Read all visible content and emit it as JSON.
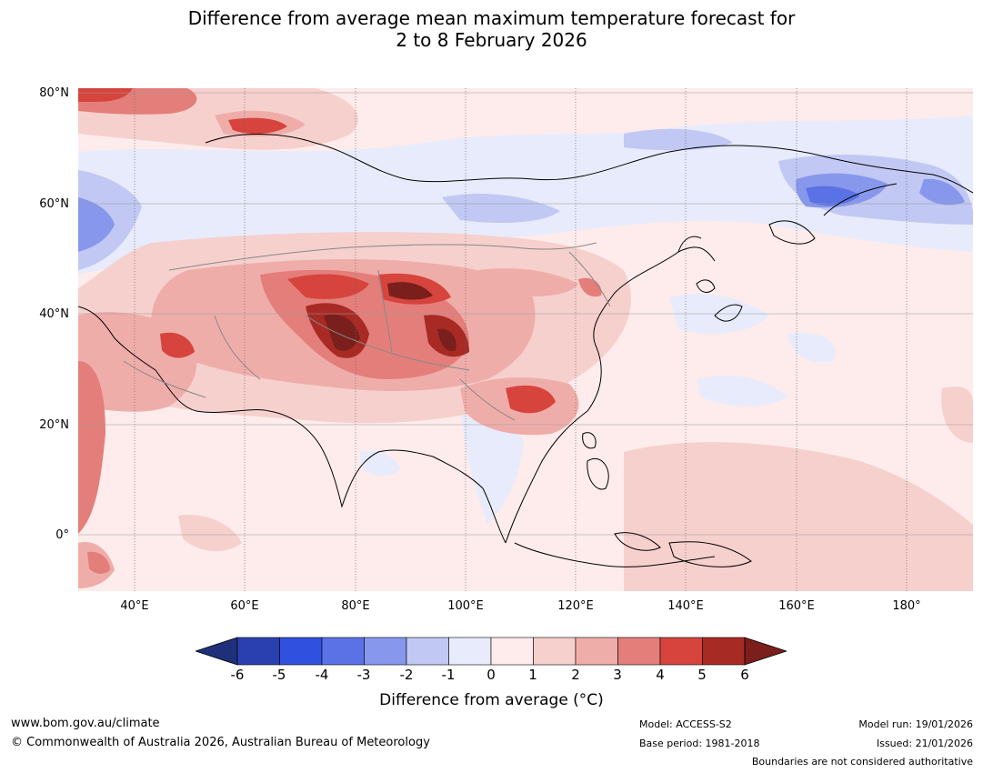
{
  "title": {
    "line1": "Difference from average mean maximum temperature forecast for",
    "line2": "2 to 8 February 2026"
  },
  "map": {
    "lat_labels": [
      "80°N",
      "60°N",
      "40°N",
      "20°N",
      "0°"
    ],
    "lon_labels": [
      "40°E",
      "60°E",
      "80°E",
      "100°E",
      "120°E",
      "140°E",
      "160°E",
      "180°"
    ]
  },
  "colorbar": {
    "ticks": [
      "-6",
      "-5",
      "-4",
      "-3",
      "-2",
      "-1",
      "0",
      "1",
      "2",
      "3",
      "4",
      "5",
      "6"
    ],
    "colors": [
      "#1f2f7a",
      "#2a3fb0",
      "#3050e0",
      "#5b72e6",
      "#8797ec",
      "#c1c8f3",
      "#e8ebfb",
      "#fdeceb",
      "#f6d0cd",
      "#efadaa",
      "#e47e7a",
      "#d6443d",
      "#a82a24",
      "#7a1f1b"
    ],
    "label": "Difference from average (°C)"
  },
  "footer": {
    "website": "www.bom.gov.au/climate",
    "copyright": "© Commonwealth of Australia 2026, Australian Bureau of Meteorology",
    "model": "Model: ACCESS-S2",
    "base_period": "Base period: 1981-2018",
    "model_run": "Model run: 19/01/2026",
    "issued": "Issued: 21/01/2026",
    "disclaimer": "Boundaries are not considered authoritative"
  }
}
